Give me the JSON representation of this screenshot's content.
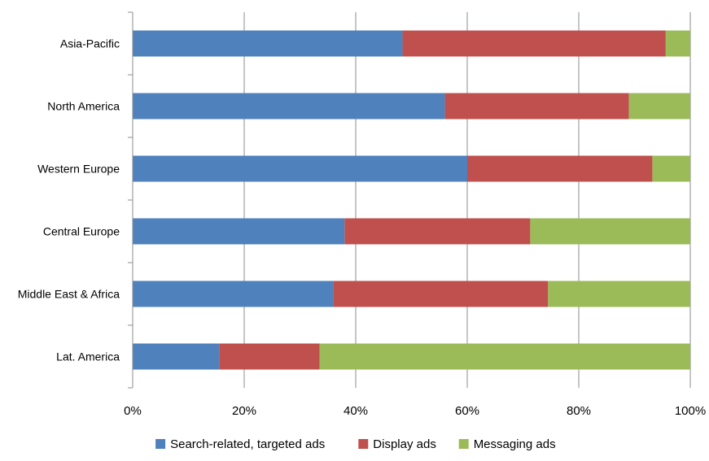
{
  "chart_data": {
    "type": "bar",
    "orientation": "horizontal",
    "stacked": "percent",
    "title": "",
    "xlabel": "",
    "ylabel": "",
    "categories": [
      "Asia-Pacific",
      "North America",
      "Western Europe",
      "Central Europe",
      "Middle East & Africa",
      "Lat. America"
    ],
    "series": [
      {
        "name": "Search-related, targeted ads",
        "color": "#4f81bd",
        "values": [
          48.4,
          56.0,
          60.0,
          38.0,
          36.0,
          15.5
        ]
      },
      {
        "name": "Display ads",
        "color": "#c0504d",
        "values": [
          47.2,
          33.0,
          33.2,
          33.3,
          38.5,
          18.0
        ]
      },
      {
        "name": "Messaging ads",
        "color": "#9bbb59",
        "values": [
          4.4,
          11.0,
          6.8,
          28.7,
          25.5,
          66.5
        ]
      }
    ],
    "x_ticks": [
      "0%",
      "20%",
      "40%",
      "60%",
      "80%",
      "100%"
    ],
    "xlim": [
      0,
      100
    ],
    "grid": true,
    "legend_position": "bottom"
  }
}
